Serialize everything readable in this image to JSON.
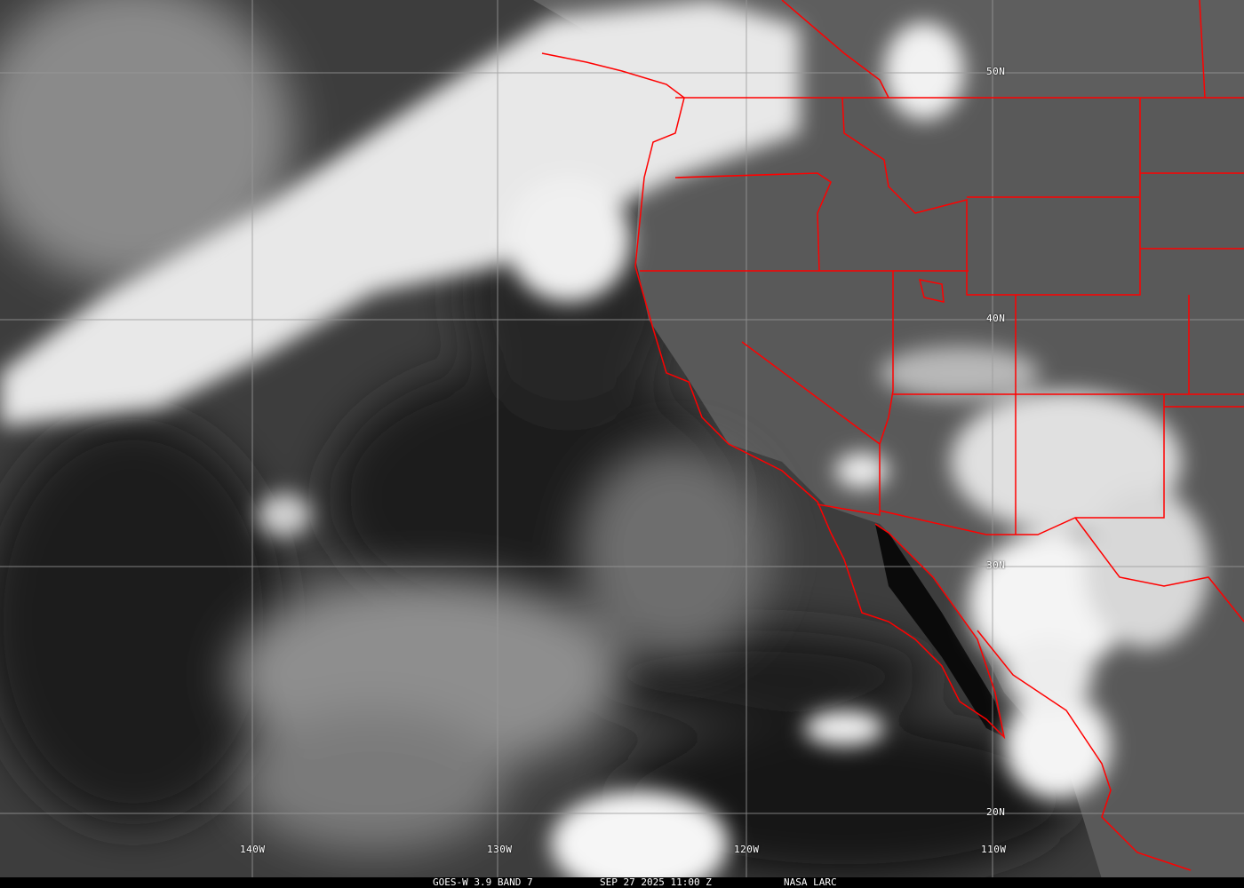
{
  "caption": {
    "sensor": "GOES-W 3.9 BAND 7",
    "datetime": "SEP 27 2025 11:00 Z",
    "source": "NASA LARC"
  },
  "grid": {
    "latitudes": [
      "50N",
      "40N",
      "30N",
      "20N"
    ],
    "longitudes": [
      "140W",
      "130W",
      "120W",
      "110W"
    ]
  },
  "colors": {
    "boundaries": "#ff0000",
    "grid": "#9a9a9a",
    "clouds": "#f2f2f2",
    "ocean": "#2a2a2a",
    "land": "#5a5a5a"
  }
}
